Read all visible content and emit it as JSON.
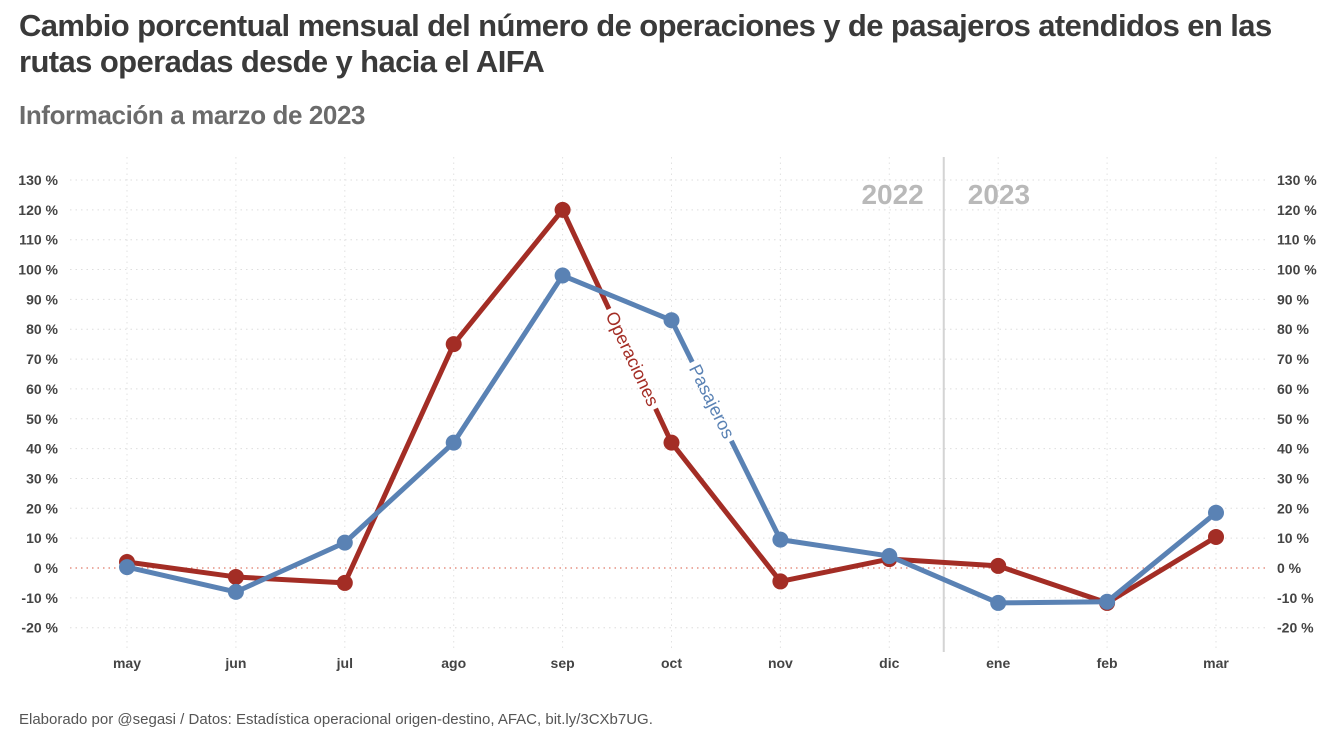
{
  "header": {
    "title": "Cambio porcentual mensual del número de operaciones y de pasajeros atendidos en las rutas operadas desde y hacia el AIFA",
    "subtitle": "Información a marzo de 2023"
  },
  "footer": {
    "source": "Elaborado por @segasi / Datos: Estadística operacional origen-destino, AFAC, bit.ly/3CXb7UG."
  },
  "chart_data": {
    "type": "line",
    "title": "Cambio porcentual mensual del número de operaciones y de pasajeros atendidos en las rutas operadas desde y hacia el AIFA",
    "subtitle": "Información a marzo de 2023",
    "xlabel": "",
    "ylabel": "",
    "categories": [
      "may",
      "jun",
      "jul",
      "ago",
      "sep",
      "oct",
      "nov",
      "dic",
      "ene",
      "feb",
      "mar"
    ],
    "ylim": [
      -20,
      130
    ],
    "yticks": [
      -20,
      -10,
      0,
      10,
      20,
      30,
      40,
      50,
      60,
      70,
      80,
      90,
      100,
      110,
      120,
      130
    ],
    "ytick_suffix": " %",
    "grid": true,
    "zero_line": true,
    "y_axis_both_sides": true,
    "series": [
      {
        "name": "Operaciones",
        "color": "#a32d25",
        "values": [
          2,
          -3,
          -5,
          75,
          120,
          42,
          -4.5,
          3,
          0.7,
          -11.7,
          10.4
        ]
      },
      {
        "name": "Pasajeros",
        "color": "#5a82b4",
        "values": [
          0.3,
          -8,
          8.5,
          42,
          98,
          83,
          9.5,
          4,
          -11.7,
          -11.3,
          18.5
        ]
      }
    ],
    "annotations": [
      {
        "text": "2022",
        "type": "year-label",
        "side": "left-of-divider"
      },
      {
        "text": "2023",
        "type": "year-label",
        "side": "right-of-divider"
      }
    ],
    "divider_between": [
      "dic",
      "ene"
    ],
    "legend": "inline labels on lines"
  }
}
